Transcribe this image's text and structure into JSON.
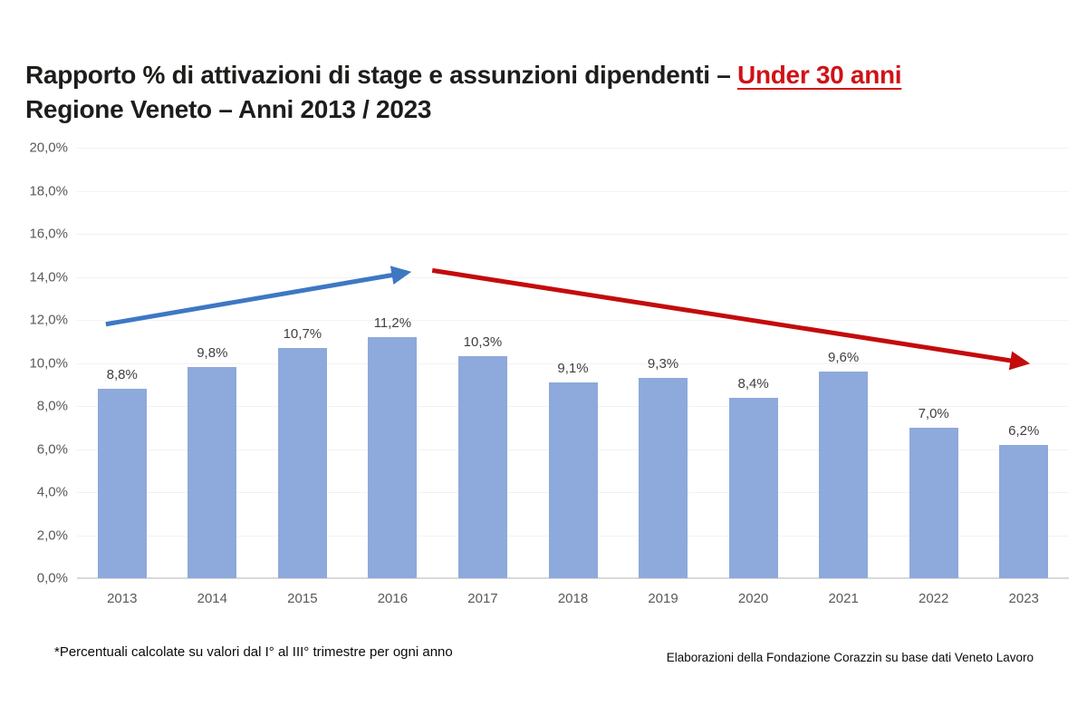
{
  "header": {
    "title_line1_prefix": "Rapporto % di attivazioni di stage e assunzioni dipendenti – ",
    "title_line1_highlight": "Under 30 anni",
    "title_line2": "Regione Veneto – Anni 2013 / 2023"
  },
  "chart_data": {
    "type": "bar",
    "title": "Rapporto % di attivazioni di stage e assunzioni dipendenti – Under 30 anni - Regione Veneto – Anni 2013 / 2023",
    "categories": [
      "2013",
      "2014",
      "2015",
      "2016",
      "2017",
      "2018",
      "2019",
      "2020",
      "2021",
      "2022",
      "2023"
    ],
    "values": [
      8.8,
      9.8,
      10.7,
      11.2,
      10.3,
      9.1,
      9.3,
      8.4,
      9.6,
      7.0,
      6.2
    ],
    "value_labels": [
      "8,8%",
      "9,8%",
      "10,7%",
      "11,2%",
      "10,3%",
      "9,1%",
      "9,3%",
      "8,4%",
      "9,6%",
      "7,0%",
      "6,2%"
    ],
    "xlabel": "",
    "ylabel": "",
    "ylim": [
      0,
      20
    ],
    "y_tick_labels_top_to_bottom": [
      "20,0%",
      "18,0%",
      "16,0%",
      "14,0%",
      "12,0%",
      "10,0%",
      "8,0%",
      "6,0%",
      "4,0%",
      "2,0%",
      "0,0%"
    ],
    "grid": "horizontal",
    "legend": "none",
    "annotations": [
      {
        "type": "arrow",
        "name": "rising-trend-arrow",
        "color": "#3d78c3",
        "from_x_units": 0.32,
        "from_y_pct": 11.8,
        "to_x_units": 3.66,
        "to_y_pct": 14.2
      },
      {
        "type": "arrow",
        "name": "falling-trend-arrow",
        "color": "#c40b0c",
        "from_x_units": 3.94,
        "from_y_pct": 14.3,
        "to_x_units": 10.52,
        "to_y_pct": 10.0
      }
    ]
  },
  "colors": {
    "bar": "#8ea9db",
    "title_text": "#1d1d1b",
    "title_highlight": "#d01217",
    "axis_text": "#595959",
    "value_label_text": "#404040",
    "gridline": "#f2f2f2",
    "axis_line": "#d9d9d9",
    "background": "#ffffff"
  },
  "footnotes": {
    "left": "*Percentuali calcolate su valori dal I° al III° trimestre per ogni anno",
    "right": "Elaborazioni della Fondazione Corazzin su base dati Veneto Lavoro"
  }
}
